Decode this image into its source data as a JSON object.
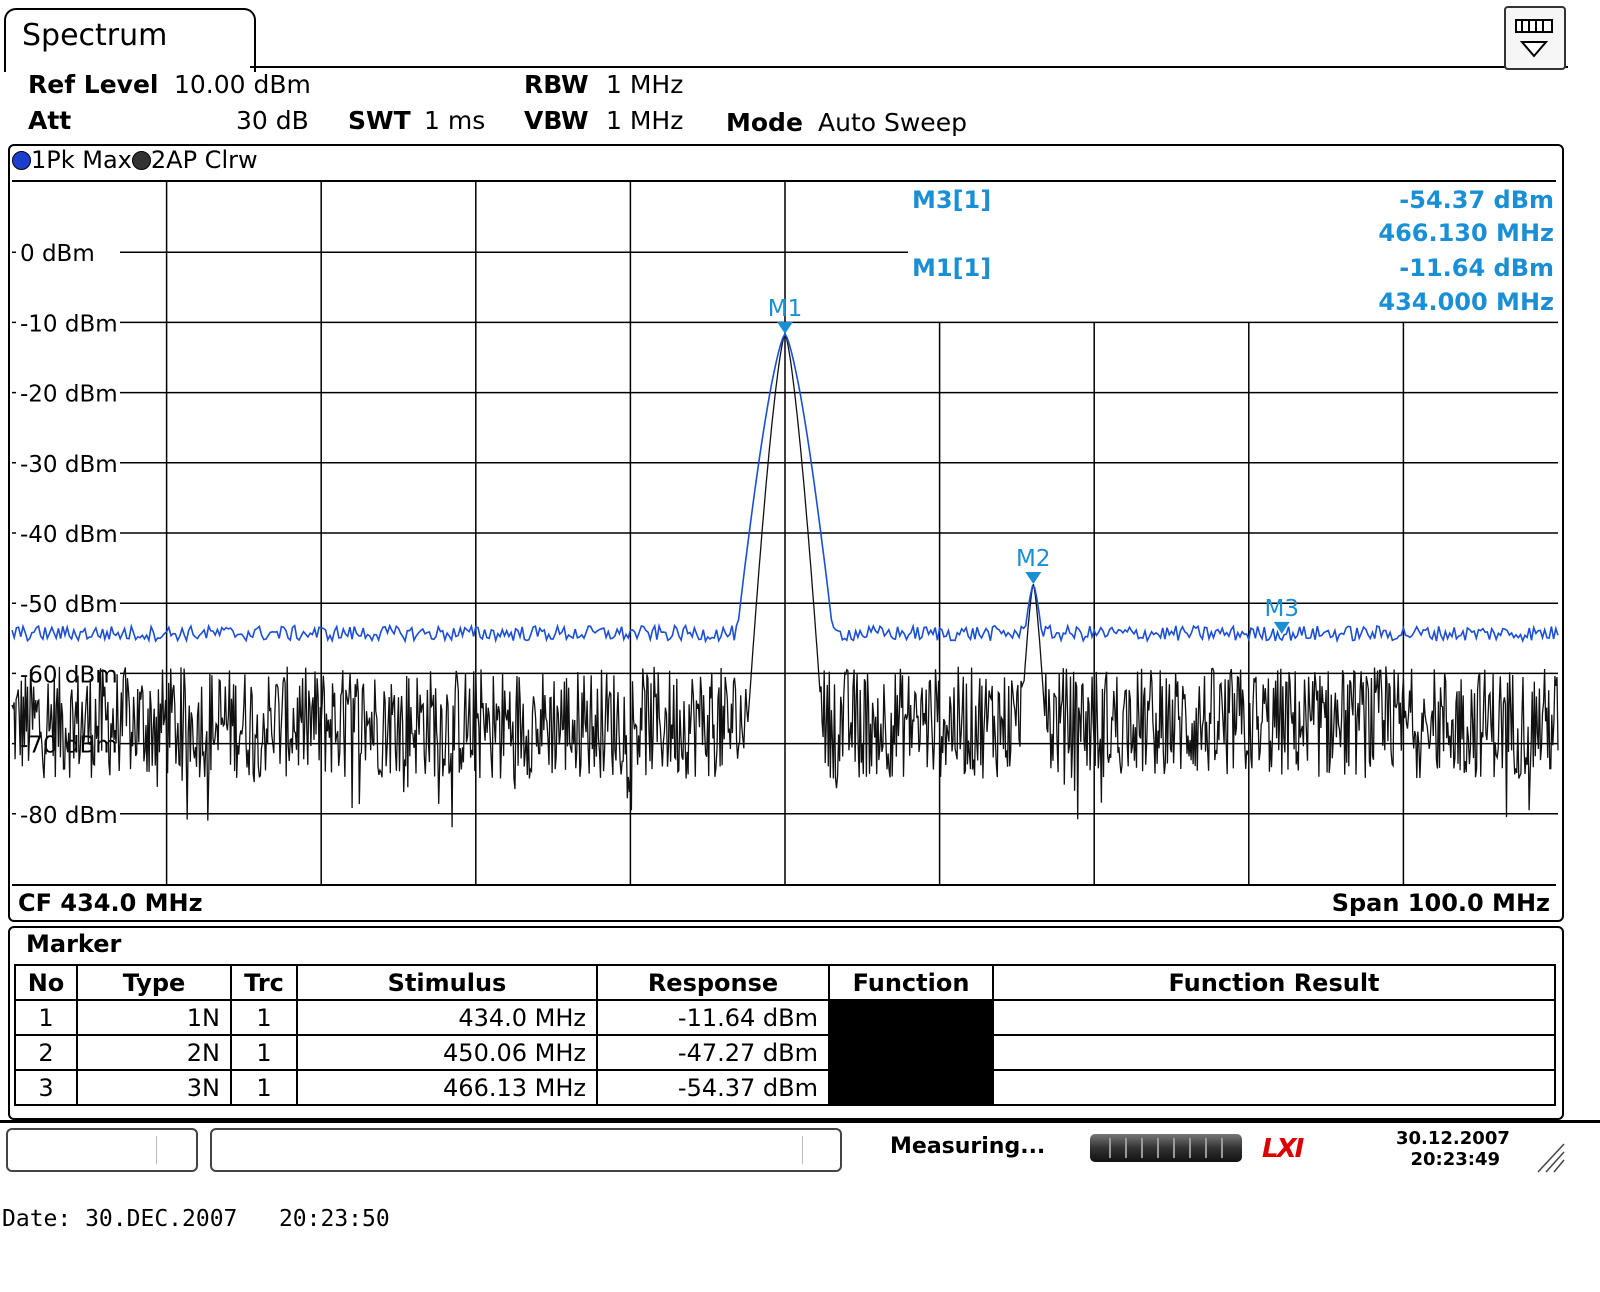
{
  "tab": {
    "title": "Spectrum"
  },
  "window_button": {
    "icon": "display-dropdown-icon"
  },
  "settings": {
    "ref_level_label": "Ref Level",
    "ref_level_value": "10.00 dBm",
    "att_label": "Att",
    "att_value": "30 dB",
    "swt_label": "SWT",
    "swt_value": "1 ms",
    "rbw_label": "RBW",
    "rbw_value": "1 MHz",
    "vbw_label": "VBW",
    "vbw_value": "1 MHz",
    "mode_label": "Mode",
    "mode_value": "Auto Sweep"
  },
  "traces": {
    "trace1": {
      "label": "1Pk Max",
      "color": "#1a4fd6"
    },
    "trace2": {
      "label": "2AP Clrw",
      "color": "#222222"
    }
  },
  "marker_readout": {
    "m3_label": "M3[1]",
    "m3_level": "-54.37 dBm",
    "m3_freq": "466.130 MHz",
    "m1_label": "M1[1]",
    "m1_level": "-11.64 dBm",
    "m1_freq": "434.000 MHz"
  },
  "footer": {
    "cf": "CF 434.0 MHz",
    "span": "Span 100.0 MHz"
  },
  "chart_data": {
    "type": "line",
    "x_unit": "MHz",
    "y_unit": "dBm",
    "xlim": [
      384.0,
      484.0
    ],
    "ylim": [
      -90,
      10
    ],
    "y_ticks": [
      "0 dBm",
      "-10 dBm",
      "-20 dBm",
      "-30 dBm",
      "-40 dBm",
      "-50 dBm",
      "-60 dBm",
      "-70 dBm",
      "-80 dBm"
    ],
    "y_tick_values": [
      0,
      -10,
      -20,
      -30,
      -40,
      -50,
      -60,
      -70,
      -80
    ],
    "grid": true,
    "series": [
      {
        "name": "1Pk Max",
        "color": "#1a4fd6",
        "noise_floor": -54.3,
        "peaks": [
          {
            "x": 434.0,
            "y": -11.64,
            "width": 1.4
          },
          {
            "x": 450.06,
            "y": -47.27,
            "width": 0.9
          }
        ]
      },
      {
        "name": "2AP Clrw",
        "color": "#111111",
        "noise_floor": -67,
        "peaks": [
          {
            "x": 434.0,
            "y": -11.64,
            "width": 0.9
          },
          {
            "x": 450.06,
            "y": -47.27,
            "width": 0.6
          }
        ]
      }
    ],
    "markers": [
      {
        "label": "M1",
        "x": 434.0,
        "y": -11.64
      },
      {
        "label": "M2",
        "x": 450.06,
        "y": -47.27
      },
      {
        "label": "M3",
        "x": 466.13,
        "y": -54.37
      }
    ]
  },
  "marker_table": {
    "title": "Marker",
    "headers": [
      "No",
      "Type",
      "Trc",
      "Stimulus",
      "Response",
      "Function",
      "Function Result"
    ],
    "rows": [
      {
        "no": "1",
        "type": "1N",
        "trc": "1",
        "stimulus": "434.0 MHz",
        "response": "-11.64 dBm",
        "function": "",
        "result": ""
      },
      {
        "no": "2",
        "type": "2N",
        "trc": "1",
        "stimulus": "450.06 MHz",
        "response": "-47.27 dBm",
        "function": "",
        "result": ""
      },
      {
        "no": "3",
        "type": "3N",
        "trc": "1",
        "stimulus": "466.13 MHz",
        "response": "-54.37 dBm",
        "function": "",
        "result": ""
      }
    ]
  },
  "status_bar": {
    "status_text": "Measuring...",
    "logo": "LXI",
    "date": "30.12.2007",
    "time": "20:23:49"
  },
  "print_footer": "Date: 30.DEC.2007   20:23:50"
}
